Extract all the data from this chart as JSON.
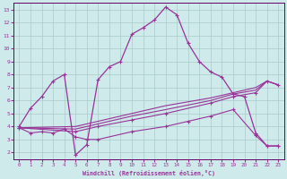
{
  "xlabel": "Windchill (Refroidissement éolien,°C)",
  "bg_color": "#ceeaea",
  "grid_color": "#aacaca",
  "line_color": "#993399",
  "xlim": [
    -0.5,
    23.5
  ],
  "ylim": [
    1.5,
    13.5
  ],
  "xticks": [
    0,
    1,
    2,
    3,
    4,
    5,
    6,
    7,
    8,
    9,
    10,
    11,
    12,
    13,
    14,
    15,
    16,
    17,
    18,
    19,
    20,
    21,
    22,
    23
  ],
  "yticks": [
    2,
    3,
    4,
    5,
    6,
    7,
    8,
    9,
    10,
    11,
    12,
    13
  ],
  "curve1_x": [
    0,
    1,
    2,
    3,
    4,
    5,
    6,
    7,
    8,
    9,
    10,
    11,
    12,
    13,
    14,
    15,
    16,
    17,
    18,
    19,
    20,
    21,
    22,
    23
  ],
  "curve1_y": [
    4.0,
    5.4,
    6.3,
    7.5,
    8.0,
    1.8,
    2.6,
    7.6,
    8.6,
    9.0,
    11.1,
    11.6,
    12.2,
    13.2,
    12.6,
    10.4,
    9.0,
    8.2,
    7.8,
    6.5,
    6.3,
    3.5,
    2.5,
    2.5
  ],
  "curve2_x": [
    0,
    1,
    2,
    3,
    4,
    5,
    6,
    7,
    10,
    13,
    15,
    17,
    19,
    21,
    22,
    23
  ],
  "curve2_y": [
    3.9,
    3.5,
    3.6,
    3.5,
    3.8,
    3.2,
    3.0,
    3.0,
    3.6,
    4.0,
    4.4,
    4.8,
    5.3,
    3.3,
    2.5,
    2.5
  ],
  "curve3_x": [
    0,
    5,
    7,
    10,
    13,
    17,
    19,
    21,
    22,
    23
  ],
  "curve3_y": [
    3.9,
    3.6,
    4.0,
    4.5,
    5.0,
    5.8,
    6.3,
    6.6,
    7.5,
    7.2
  ],
  "curve4_x": [
    0,
    5,
    7,
    10,
    13,
    17,
    19,
    21,
    22,
    23
  ],
  "curve4_y": [
    3.9,
    3.8,
    4.2,
    4.8,
    5.3,
    6.0,
    6.5,
    6.8,
    7.5,
    7.2
  ],
  "curve5_x": [
    0,
    5,
    7,
    10,
    13,
    17,
    19,
    21,
    22,
    23
  ],
  "curve5_y": [
    3.9,
    4.0,
    4.4,
    5.0,
    5.6,
    6.2,
    6.6,
    7.0,
    7.5,
    7.2
  ]
}
